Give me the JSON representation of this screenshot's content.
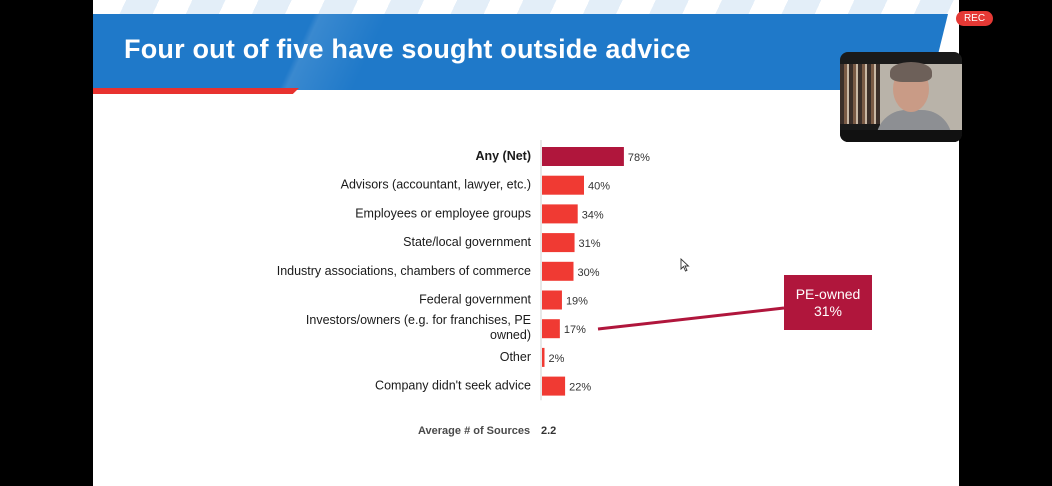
{
  "slide": {
    "title": "Four out of five have sought outside advice",
    "rec_label": "REC"
  },
  "callout": {
    "line1": "PE-owned",
    "line2": "31%"
  },
  "summary": {
    "label": "Average # of  Sources",
    "value": "2.2"
  },
  "colors": {
    "banner": "#1f79c9",
    "highlight_bar": "#b0163c",
    "bar": "#f03a33",
    "callout": "#b0163c"
  },
  "chart_data": {
    "type": "bar",
    "orientation": "horizontal",
    "categories": [
      "Any (Net)",
      "Advisors (accountant, lawyer, etc.)",
      "Employees or employee groups",
      "State/local government",
      "Industry associations, chambers of commerce",
      "Federal government",
      "Investors/owners (e.g. for franchises, PE owned)",
      "Other",
      "Company didn't seek advice"
    ],
    "values": [
      78,
      40,
      34,
      31,
      30,
      19,
      17,
      2,
      22
    ],
    "value_labels": [
      "78%",
      "40%",
      "34%",
      "31%",
      "30%",
      "19%",
      "17%",
      "2%",
      "22%"
    ],
    "highlight_index": 0,
    "xlim": [
      0,
      100
    ]
  }
}
